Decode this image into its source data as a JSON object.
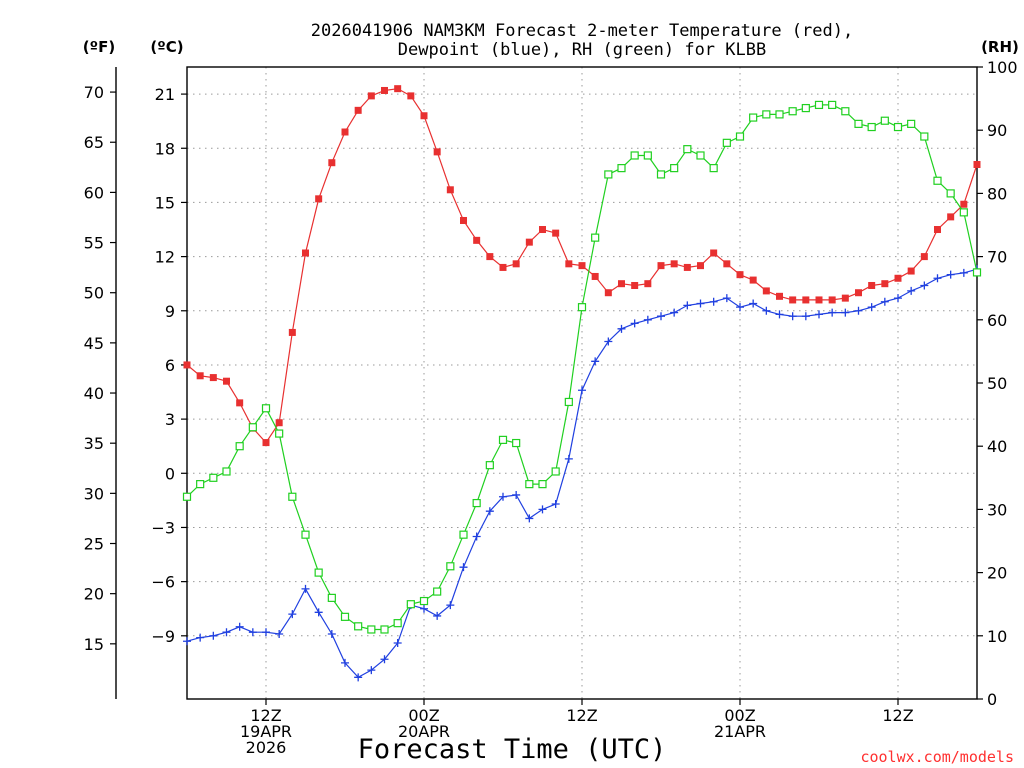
{
  "chart_data": {
    "type": "line",
    "title_line1": "2026041906 NAM3KM Forecast 2-meter Temperature (red),",
    "title_line2": "Dewpoint (blue), RH (green) for KLBB",
    "xlabel": "Forecast Time (UTC)",
    "credit": "coolwx.com/models",
    "unit_f": "(ºF)",
    "unit_c": "(ºC)",
    "unit_rh": "(RH)",
    "x_unit": "forecast hour",
    "xlim": [
      0,
      60
    ],
    "ylim_c": [
      -12.5,
      22.5
    ],
    "ylim_rh": [
      0,
      100
    ],
    "c_ticks": [
      {
        "value": 21,
        "label": "21"
      },
      {
        "value": 18,
        "label": "18"
      },
      {
        "value": 15,
        "label": "15"
      },
      {
        "value": 12,
        "label": "12"
      },
      {
        "value": 9,
        "label": "9"
      },
      {
        "value": 6,
        "label": "6"
      },
      {
        "value": 3,
        "label": "3"
      },
      {
        "value": 0,
        "label": "0"
      },
      {
        "value": -3,
        "label": "−3"
      },
      {
        "value": -6,
        "label": "−6"
      },
      {
        "value": -9,
        "label": "−9"
      }
    ],
    "f_ticks": [
      {
        "value": 70,
        "label": "70"
      },
      {
        "value": 65,
        "label": "65"
      },
      {
        "value": 60,
        "label": "60"
      },
      {
        "value": 55,
        "label": "55"
      },
      {
        "value": 50,
        "label": "50"
      },
      {
        "value": 45,
        "label": "45"
      },
      {
        "value": 40,
        "label": "40"
      },
      {
        "value": 35,
        "label": "35"
      },
      {
        "value": 30,
        "label": "30"
      },
      {
        "value": 25,
        "label": "25"
      },
      {
        "value": 20,
        "label": "20"
      },
      {
        "value": 15,
        "label": "15"
      }
    ],
    "rh_ticks": [
      {
        "value": 100,
        "label": "100"
      },
      {
        "value": 90,
        "label": "90"
      },
      {
        "value": 80,
        "label": "80"
      },
      {
        "value": 70,
        "label": "70"
      },
      {
        "value": 60,
        "label": "60"
      },
      {
        "value": 50,
        "label": "50"
      },
      {
        "value": 40,
        "label": "40"
      },
      {
        "value": 30,
        "label": "30"
      },
      {
        "value": 20,
        "label": "20"
      },
      {
        "value": 10,
        "label": "10"
      },
      {
        "value": 0,
        "label": "0"
      }
    ],
    "x_ticks": [
      {
        "hour": 6,
        "lines": [
          "12Z",
          "19APR",
          "2026"
        ]
      },
      {
        "hour": 18,
        "lines": [
          "00Z",
          "20APR"
        ]
      },
      {
        "hour": 30,
        "lines": [
          "12Z"
        ]
      },
      {
        "hour": 42,
        "lines": [
          "00Z",
          "21APR"
        ]
      },
      {
        "hour": 54,
        "lines": [
          "12Z"
        ]
      }
    ],
    "series": [
      {
        "name": "Temperature",
        "unit": "C",
        "color": "#e83030",
        "marker": "filled-square",
        "x": [
          0,
          1,
          2,
          3,
          4,
          5,
          6,
          7,
          8,
          9,
          10,
          11,
          12,
          13,
          14,
          15,
          16,
          17,
          18,
          19,
          20,
          21,
          22,
          23,
          24,
          25,
          26,
          27,
          28,
          29,
          30,
          31,
          32,
          33,
          34,
          35,
          36,
          37,
          38,
          39,
          40,
          41,
          42,
          43,
          44,
          45,
          46,
          47,
          48,
          49,
          50,
          51,
          52,
          53,
          54,
          55,
          56,
          57,
          58,
          59,
          60
        ],
        "values": [
          6.0,
          5.4,
          5.3,
          5.1,
          3.9,
          2.5,
          1.7,
          2.8,
          7.8,
          12.2,
          15.2,
          17.2,
          18.9,
          20.1,
          20.9,
          21.2,
          21.3,
          20.9,
          19.8,
          17.8,
          15.7,
          14.0,
          12.9,
          12.0,
          11.4,
          11.6,
          12.8,
          13.5,
          13.3,
          11.6,
          11.5,
          10.9,
          10.0,
          10.5,
          10.4,
          10.5,
          11.5,
          11.6,
          11.4,
          11.5,
          12.2,
          11.6,
          11.0,
          10.7,
          10.1,
          9.8,
          9.6,
          9.6,
          9.6,
          9.6,
          9.7,
          10.0,
          10.4,
          10.5,
          10.8,
          11.2,
          12.0,
          13.5,
          14.2,
          14.9,
          17.1
        ]
      },
      {
        "name": "Dewpoint",
        "unit": "C",
        "color": "#2040e0",
        "marker": "plus",
        "x": [
          0,
          1,
          2,
          3,
          4,
          5,
          6,
          7,
          8,
          9,
          10,
          11,
          12,
          13,
          14,
          15,
          16,
          17,
          18,
          19,
          20,
          21,
          22,
          23,
          24,
          25,
          26,
          27,
          28,
          29,
          30,
          31,
          32,
          33,
          34,
          35,
          36,
          37,
          38,
          39,
          40,
          41,
          42,
          43,
          44,
          45,
          46,
          47,
          48,
          49,
          50,
          51,
          52,
          53,
          54,
          55,
          56,
          57,
          58,
          59,
          60
        ],
        "values": [
          -9.3,
          -9.1,
          -9.0,
          -8.8,
          -8.5,
          -8.8,
          -8.8,
          -8.9,
          -7.8,
          -6.4,
          -7.7,
          -8.9,
          -10.5,
          -11.3,
          -10.9,
          -10.3,
          -9.4,
          -7.3,
          -7.5,
          -7.9,
          -7.3,
          -5.2,
          -3.5,
          -2.1,
          -1.3,
          -1.2,
          -2.5,
          -2.0,
          -1.7,
          0.8,
          4.6,
          6.2,
          7.3,
          8.0,
          8.3,
          8.5,
          8.7,
          8.9,
          9.3,
          9.4,
          9.5,
          9.7,
          9.2,
          9.4,
          9.0,
          8.8,
          8.7,
          8.7,
          8.8,
          8.9,
          8.9,
          9.0,
          9.2,
          9.5,
          9.7,
          10.1,
          10.4,
          10.8,
          11.0,
          11.1,
          11.3
        ]
      },
      {
        "name": "RH",
        "unit": "%",
        "color": "#20d020",
        "marker": "open-square",
        "x": [
          0,
          1,
          2,
          3,
          4,
          5,
          6,
          7,
          8,
          9,
          10,
          11,
          12,
          13,
          14,
          15,
          16,
          17,
          18,
          19,
          20,
          21,
          22,
          23,
          24,
          25,
          26,
          27,
          28,
          29,
          30,
          31,
          32,
          33,
          34,
          35,
          36,
          37,
          38,
          39,
          40,
          41,
          42,
          43,
          44,
          45,
          46,
          47,
          48,
          49,
          50,
          51,
          52,
          53,
          54,
          55,
          56,
          57,
          58,
          59,
          60
        ],
        "values": [
          32,
          34,
          35,
          36,
          40,
          43,
          46,
          42,
          32,
          26,
          20,
          16,
          13,
          11.5,
          11,
          11,
          12,
          15,
          15.5,
          17,
          21,
          26,
          31,
          37,
          41,
          40.5,
          34,
          34,
          36,
          47,
          62,
          73,
          83,
          84,
          86,
          86,
          83,
          84,
          87,
          86,
          84,
          88,
          89,
          92,
          92.5,
          92.5,
          93,
          93.5,
          94,
          94,
          93,
          91,
          90.5,
          91.5,
          90.5,
          91,
          89,
          82,
          80,
          77,
          67.5
        ]
      }
    ]
  }
}
